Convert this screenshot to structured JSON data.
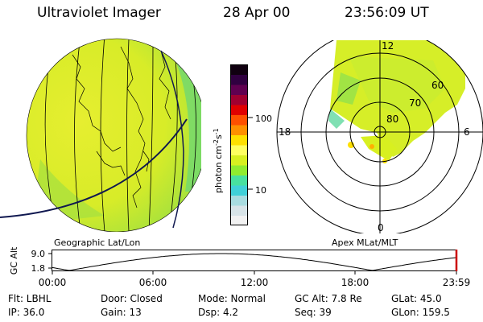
{
  "header": {
    "instrument": "Ultraviolet Imager",
    "date": "28 Apr 00",
    "time": "23:56:09 UT"
  },
  "geo_panel": {
    "label": "Geographic Lat/Lon"
  },
  "polar_panel": {
    "label": "Apex MLat/MLT",
    "mlt_labels": [
      "12",
      "18",
      "6",
      "0"
    ],
    "lat_labels": [
      "60",
      "70",
      "80"
    ]
  },
  "colorbar": {
    "unit_label": "photon cm",
    "unit_exp1": "-2",
    "unit_s": "s",
    "unit_exp2": "-1",
    "ticks": [
      "100",
      "10"
    ],
    "scale": "log",
    "colors": [
      "#f2f2f2",
      "#d8e4e8",
      "#a8dce0",
      "#40d0d8",
      "#48e0a0",
      "#90ec30",
      "#d8f020",
      "#ffff60",
      "#ffe000",
      "#ff9000",
      "#ff5000",
      "#e00000",
      "#a00030",
      "#600050",
      "#300040",
      "#100010"
    ]
  },
  "altitude_plot": {
    "ylabel": "GC Alt",
    "yticks": [
      "9.0",
      "1.8"
    ],
    "xticks": [
      "00:00",
      "06:00",
      "12:00",
      "18:00",
      "23:59"
    ],
    "marker_color": "#cc0000"
  },
  "info": {
    "row1": [
      "Flt: LBHL",
      "Door: Closed",
      "Mode: Normal",
      "GC Alt: 7.8 Re",
      "GLat:  45.0"
    ],
    "row2": [
      "IP: 36.0",
      "Gain: 13",
      "Dsp:      4.2",
      "Seq: 39",
      "GLon: 159.5"
    ]
  }
}
